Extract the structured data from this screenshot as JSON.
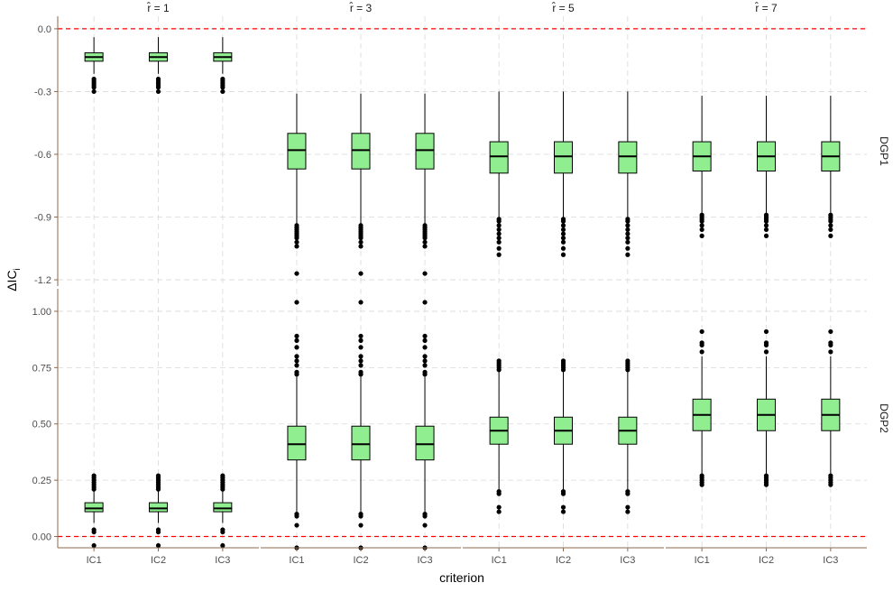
{
  "chart_data": {
    "type": "boxplot",
    "xlabel": "criterion",
    "ylabel": "ΔIC",
    "ylabel_subscript": "i",
    "reference_line": {
      "y": 0,
      "color": "#ff0000",
      "style": "dashed"
    },
    "box_fill": "#90ee90",
    "grid": true,
    "categories": [
      "IC1",
      "IC2",
      "IC3"
    ],
    "facet_columns": [
      {
        "hat": "r",
        "label": " = 1"
      },
      {
        "hat": "r",
        "label": " = 3"
      },
      {
        "hat": "r",
        "label": " = 5"
      },
      {
        "hat": "r",
        "label": " = 7"
      }
    ],
    "facet_rows": [
      {
        "label": "DGP1",
        "ylim": [
          -1.23,
          0.06
        ],
        "yticks": [
          0.0,
          -0.3,
          -0.6,
          -0.9,
          -1.2
        ],
        "yticklabels": [
          "0.0",
          "-0.3",
          "-0.6",
          "-0.9",
          "-1.2"
        ],
        "panels": [
          {
            "box": {
              "whislo": -0.215,
              "q1": -0.155,
              "med": -0.135,
              "q3": -0.115,
              "whishi": -0.04
            },
            "outliers": [
              -0.24,
              -0.25,
              -0.26,
              -0.27,
              -0.28,
              -0.3
            ]
          },
          {
            "box": {
              "whislo": -0.93,
              "q1": -0.67,
              "med": -0.58,
              "q3": -0.5,
              "whishi": -0.31
            },
            "outliers": [
              -0.94,
              -0.95,
              -0.96,
              -0.97,
              -0.98,
              -0.99,
              -1.0,
              -1.02,
              -1.04,
              -1.17
            ]
          },
          {
            "box": {
              "whislo": -0.9,
              "q1": -0.69,
              "med": -0.61,
              "q3": -0.54,
              "whishi": -0.3
            },
            "outliers": [
              -0.91,
              -0.92,
              -0.94,
              -0.96,
              -0.98,
              -1.0,
              -1.02,
              -1.05,
              -1.08
            ]
          },
          {
            "box": {
              "whislo": -0.88,
              "q1": -0.68,
              "med": -0.61,
              "q3": -0.54,
              "whishi": -0.32
            },
            "outliers": [
              -0.89,
              -0.9,
              -0.91,
              -0.92,
              -0.94,
              -0.96,
              -0.99
            ]
          }
        ]
      },
      {
        "label": "DGP2",
        "ylim": [
          -0.05,
          1.1
        ],
        "yticks": [
          0.0,
          0.25,
          0.5,
          0.75,
          1.0
        ],
        "yticklabels": [
          "0.00",
          "0.25",
          "0.50",
          "0.75",
          "1.00"
        ],
        "panels": [
          {
            "box": {
              "whislo": 0.06,
              "q1": 0.11,
              "med": 0.125,
              "q3": 0.15,
              "whishi": 0.205
            },
            "outliers": [
              0.21,
              0.22,
              0.23,
              0.24,
              0.25,
              0.26,
              0.27,
              0.03,
              0.02,
              -0.04
            ]
          },
          {
            "box": {
              "whislo": 0.11,
              "q1": 0.34,
              "med": 0.41,
              "q3": 0.49,
              "whishi": 0.71
            },
            "outliers": [
              0.72,
              0.73,
              0.76,
              0.78,
              0.8,
              0.84,
              0.87,
              0.89,
              1.04,
              0.1,
              0.09,
              0.05,
              -0.05
            ]
          },
          {
            "box": {
              "whislo": 0.21,
              "q1": 0.41,
              "med": 0.47,
              "q3": 0.53,
              "whishi": 0.73
            },
            "outliers": [
              0.74,
              0.75,
              0.76,
              0.77,
              0.78,
              0.2,
              0.19,
              0.13,
              0.11
            ]
          },
          {
            "box": {
              "whislo": 0.28,
              "q1": 0.47,
              "med": 0.54,
              "q3": 0.61,
              "whishi": 0.8
            },
            "outliers": [
              0.82,
              0.85,
              0.86,
              0.91,
              0.27,
              0.26,
              0.25,
              0.24,
              0.23
            ]
          }
        ]
      }
    ]
  }
}
